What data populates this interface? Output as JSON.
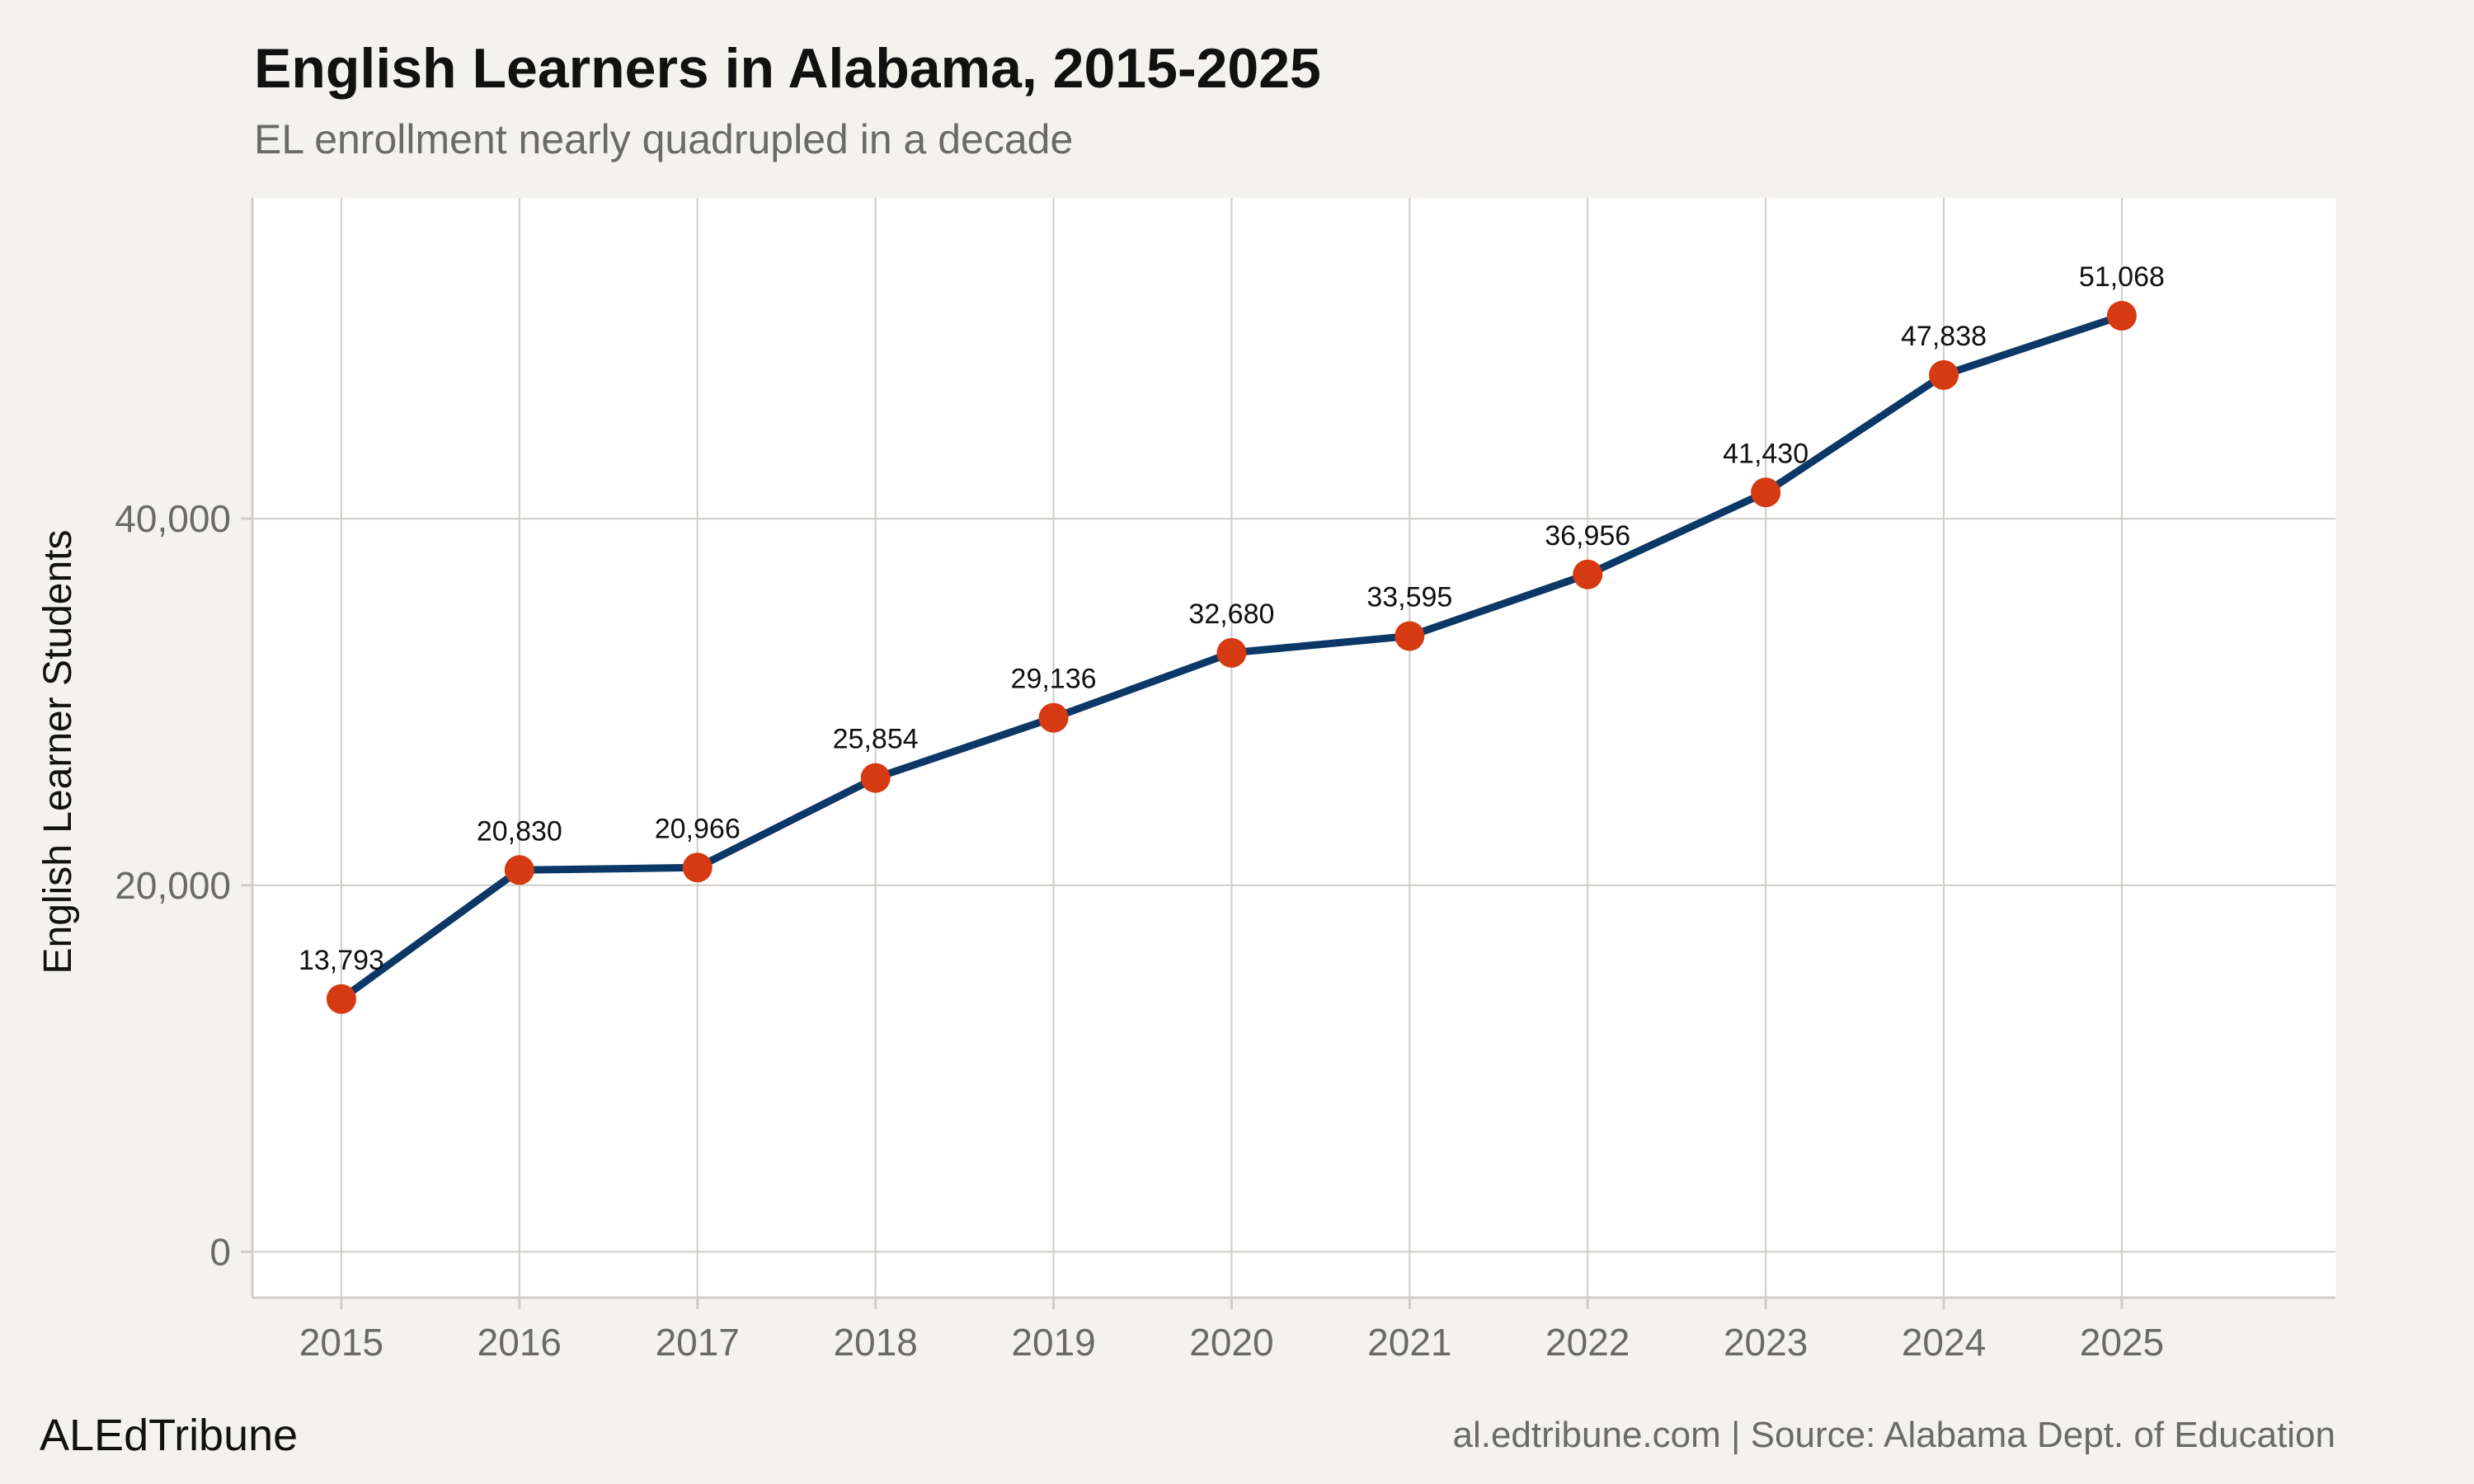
{
  "header": {
    "title": "English Learners in Alabama, 2015-2025",
    "subtitle": "EL enrollment nearly quadrupled in a decade"
  },
  "footer": {
    "brand": "ALEdTribune",
    "source": "al.edtribune.com | Source: Alabama Dept. of Education"
  },
  "colors": {
    "background": "#f4f2ee",
    "panel": "#ffffff",
    "line": "#0b3866",
    "point": "#d63a12",
    "grid": "#cfcdc8",
    "tick_text": "#6a6a6a"
  },
  "chart_data": {
    "type": "line",
    "title": "English Learners in Alabama, 2015-2025",
    "subtitle": "EL enrollment nearly quadrupled in a decade",
    "xlabel": "",
    "ylabel": "English Learner Students",
    "x": [
      2015,
      2016,
      2017,
      2018,
      2019,
      2020,
      2021,
      2022,
      2023,
      2024,
      2025
    ],
    "x_tick_labels": [
      "2015",
      "2016",
      "2017",
      "2018",
      "2019",
      "2020",
      "2021",
      "2022",
      "2023",
      "2024",
      "2025"
    ],
    "values": [
      13793,
      20830,
      20966,
      25854,
      29136,
      32680,
      33595,
      36956,
      41430,
      47838,
      51068
    ],
    "data_labels": [
      "13,793",
      "20,830",
      "20,966",
      "25,854",
      "29,136",
      "32,680",
      "33,595",
      "36,956",
      "41,430",
      "47,838",
      "51,068"
    ],
    "y_ticks": [
      0,
      20000,
      40000
    ],
    "y_tick_labels": [
      "0",
      "20,000",
      "40,000"
    ],
    "xlim": [
      2014.5,
      2026.2
    ],
    "ylim": [
      -2500,
      57500
    ],
    "grid": true,
    "legend": "none"
  }
}
